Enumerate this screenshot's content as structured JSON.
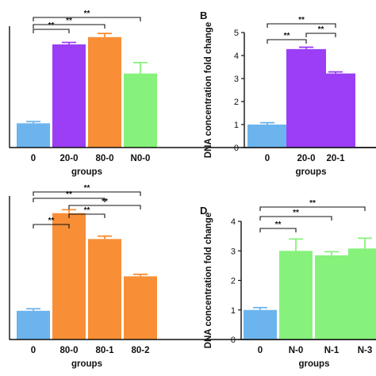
{
  "chart_data": [
    {
      "panel": "",
      "type": "bar",
      "categories": [
        "0",
        "20-0",
        "80-0",
        "N0-0"
      ],
      "values": [
        1.0,
        4.25,
        4.55,
        3.05
      ],
      "errors": [
        0.07,
        0.08,
        0.15,
        0.45
      ],
      "colors": [
        "#6cb4ee",
        "#9b3ef5",
        "#f88f36",
        "#86f27b"
      ],
      "xlabel": "groups",
      "ylabel": "",
      "ylim": [
        0,
        5
      ],
      "yticks": [],
      "significance": [
        {
          "from": 0,
          "to": 1,
          "label": "**"
        },
        {
          "from": 0,
          "to": 2,
          "label": "**"
        },
        {
          "from": 0,
          "to": 3,
          "label": "**"
        }
      ]
    },
    {
      "panel": "B",
      "type": "bar",
      "categories": [
        "0",
        "20-0",
        "20-1"
      ],
      "values": [
        1.0,
        4.28,
        3.22
      ],
      "errors": [
        0.08,
        0.08,
        0.07
      ],
      "colors": [
        "#6cb4ee",
        "#9b3ef5",
        "#9b3ef5"
      ],
      "xlabel": "groups",
      "ylabel": "DNA concentration fold change",
      "ylim": [
        0,
        5
      ],
      "yticks": [
        "0",
        "1",
        "2",
        "3",
        "4",
        "5"
      ],
      "significance": [
        {
          "from": 0,
          "to": 1,
          "label": "**"
        },
        {
          "from": 1,
          "to": 2,
          "label": "**"
        },
        {
          "from": 0,
          "to": 2,
          "label": "**"
        }
      ]
    },
    {
      "panel": "",
      "type": "bar",
      "categories": [
        "0",
        "80-0",
        "80-1",
        "80-2"
      ],
      "values": [
        1.0,
        4.4,
        3.5,
        2.2
      ],
      "errors": [
        0.07,
        0.12,
        0.1,
        0.07
      ],
      "colors": [
        "#6cb4ee",
        "#f88f36",
        "#f88f36",
        "#f88f36"
      ],
      "xlabel": "groups",
      "ylabel": "",
      "ylim": [
        0,
        5
      ],
      "yticks": [],
      "significance": [
        {
          "from": 0,
          "to": 1,
          "label": "**"
        },
        {
          "from": 1,
          "to": 2,
          "label": "**"
        },
        {
          "from": 1,
          "to": 3,
          "label": "**"
        },
        {
          "from": 0,
          "to": 2,
          "label": "**"
        },
        {
          "from": 0,
          "to": 3,
          "label": "**"
        }
      ]
    },
    {
      "panel": "D",
      "type": "bar",
      "categories": [
        "0",
        "N-0",
        "N-1",
        "N-3"
      ],
      "values": [
        1.0,
        3.0,
        2.85,
        3.08
      ],
      "errors": [
        0.08,
        0.4,
        0.12,
        0.35
      ],
      "colors": [
        "#6cb4ee",
        "#86f27b",
        "#86f27b",
        "#86f27b"
      ],
      "xlabel": "groups",
      "ylabel": "DNA concentration fold change",
      "ylim": [
        0,
        4
      ],
      "yticks": [
        "0",
        "1",
        "2",
        "3",
        "4"
      ],
      "significance": [
        {
          "from": 0,
          "to": 1,
          "label": "**"
        },
        {
          "from": 0,
          "to": 2,
          "label": "**"
        },
        {
          "from": 0,
          "to": 3,
          "label": "**"
        }
      ]
    }
  ]
}
